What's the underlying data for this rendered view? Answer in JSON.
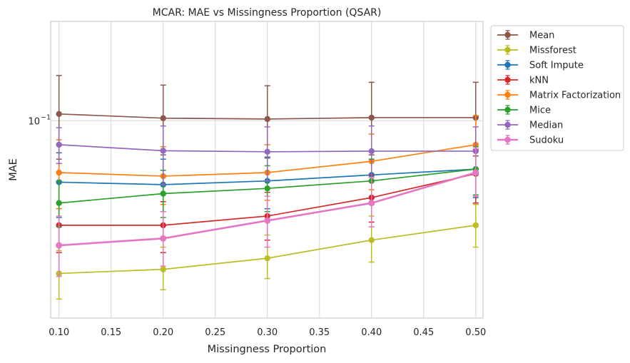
{
  "chart_data": {
    "type": "line",
    "title": "MCAR: MAE vs Missingness Proportion (QSAR)",
    "xlabel": "Missingness Proportion",
    "ylabel": "MAE",
    "yscale": "log",
    "xlim": [
      0.092,
      0.507
    ],
    "ylim": [
      0.0318,
      0.178
    ],
    "grid": true,
    "legend_position": "outside-right",
    "x": [
      0.1,
      0.2,
      0.3,
      0.4,
      0.5
    ],
    "x_tick_values": [
      0.1,
      0.15,
      0.2,
      0.25,
      0.3,
      0.35,
      0.4,
      0.45,
      0.5
    ],
    "x_tick_labels": [
      "0.10",
      "0.15",
      "0.20",
      "0.25",
      "0.30",
      "0.35",
      "0.40",
      "0.45",
      "0.50"
    ],
    "y_tick_values": [
      0.1
    ],
    "y_tick_labels": [
      {
        "base": "10",
        "exp": "−1"
      }
    ],
    "series": [
      {
        "name": "Mean",
        "color": "#8c564b",
        "values": [
          0.104,
          0.1015,
          0.101,
          0.1018,
          0.1018
        ],
        "err_low": [
          0.08,
          0.082,
          0.0805,
          0.082,
          0.0815
        ],
        "err_high": [
          0.13,
          0.123,
          0.1225,
          0.125,
          0.125
        ]
      },
      {
        "name": "Missforest",
        "color": "#bcbd22",
        "values": [
          0.0412,
          0.0422,
          0.045,
          0.05,
          0.0545
        ],
        "err_low": [
          0.0355,
          0.0375,
          0.04,
          0.044,
          0.048
        ],
        "err_high": [
          0.047,
          0.048,
          0.0515,
          0.0575,
          0.0615
        ]
      },
      {
        "name": "Soft Impute",
        "color": "#1f77b4",
        "values": [
          0.07,
          0.069,
          0.0705,
          0.073,
          0.0755
        ],
        "err_low": [
          0.057,
          0.059,
          0.06,
          0.0625,
          0.064
        ],
        "err_high": [
          0.083,
          0.08,
          0.081,
          0.0835,
          0.086
        ]
      },
      {
        "name": "kNN",
        "color": "#d62728",
        "values": [
          0.0545,
          0.0545,
          0.0575,
          0.064,
          0.0735
        ],
        "err_low": [
          0.0465,
          0.0465,
          0.05,
          0.0555,
          0.062
        ],
        "err_high": [
          0.062,
          0.0625,
          0.066,
          0.073,
          0.0845
        ]
      },
      {
        "name": "Matrix Factorization",
        "color": "#ff7f0e",
        "values": [
          0.074,
          0.0725,
          0.074,
          0.079,
          0.087
        ],
        "err_low": [
          0.06,
          0.0615,
          0.063,
          0.067,
          0.074
        ],
        "err_high": [
          0.0895,
          0.086,
          0.087,
          0.0925,
          0.103
        ]
      },
      {
        "name": "Mice",
        "color": "#2ca02c",
        "values": [
          0.062,
          0.0655,
          0.0675,
          0.0705,
          0.0755
        ],
        "err_low": [
          0.054,
          0.057,
          0.059,
          0.0615,
          0.065
        ],
        "err_high": [
          0.0705,
          0.075,
          0.077,
          0.08,
          0.086
        ]
      },
      {
        "name": "Median",
        "color": "#9467bd",
        "values": [
          0.087,
          0.084,
          0.0835,
          0.0838,
          0.0838
        ],
        "err_low": [
          0.078,
          0.069,
          0.0705,
          0.072,
          0.073
        ],
        "err_high": [
          0.096,
          0.097,
          0.0965,
          0.097,
          0.0965
        ]
      },
      {
        "name": "Sudoku",
        "color": "#e377c2",
        "values": [
          0.0485,
          0.0505,
          0.056,
          0.062,
          0.074
        ],
        "err_low": [
          0.0405,
          0.043,
          0.048,
          0.054,
          0.0645
        ],
        "err_high": [
          0.0575,
          0.059,
          0.0645,
          0.072,
          0.085
        ]
      }
    ]
  }
}
